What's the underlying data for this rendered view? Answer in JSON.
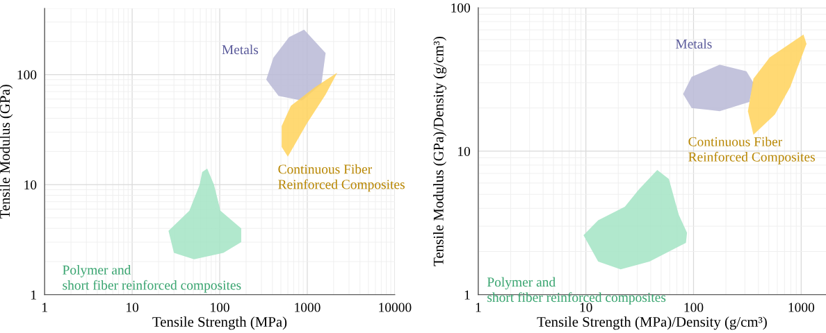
{
  "chart_data": [
    {
      "type": "area",
      "xlabel": "Tensile Strength (MPa)",
      "ylabel": "Tensile Modulus (GPa)",
      "log": "xy",
      "grid": true,
      "legend": false,
      "xlim": [
        1,
        10000
      ],
      "ylim": [
        1,
        400
      ],
      "xticks": [
        1,
        10,
        100,
        1000,
        10000
      ],
      "yticks": [
        1,
        10,
        100
      ],
      "series": [
        {
          "name": "Metals",
          "color": "#b9b9d6",
          "x": [
            920,
            1620,
            1450,
            870,
            470,
            340,
            410,
            620
          ],
          "values": [
            256,
            157,
            82,
            58,
            64,
            90,
            142,
            219
          ]
        },
        {
          "name": "Continuous Fiber\nReinforced Composites",
          "color": "#ffd25a",
          "x": [
            2200,
            1620,
            990,
            600,
            510,
            510,
            650,
            1230
          ],
          "values": [
            104,
            66,
            36,
            18,
            22,
            34,
            52,
            77
          ]
        },
        {
          "name": "Polymer and\nshort fiber reinforced composites",
          "color": "#a3e4c4",
          "x": [
            72,
            86,
            102,
            176,
            176,
            110,
            51,
            30,
            26,
            45,
            59,
            63
          ],
          "values": [
            14,
            10,
            5.8,
            4.0,
            3.0,
            2.4,
            2.1,
            2.4,
            3.8,
            5.8,
            10,
            13
          ]
        }
      ]
    },
    {
      "type": "area",
      "xlabel": "Tensile Strength (MPa)/Density (g/cm³)",
      "ylabel": "Tensile Modulus (GPa)/Density (g/cm³)",
      "log": "xy",
      "grid": true,
      "legend": false,
      "xlim": [
        1,
        1700
      ],
      "ylim": [
        1,
        100
      ],
      "xticks": [
        1,
        10,
        100,
        1000
      ],
      "yticks": [
        1,
        10,
        100
      ],
      "series": [
        {
          "name": "Metals",
          "color": "#b9b9d6",
          "x": [
            80,
            96,
            175,
            310,
            360,
            330,
            175,
            96
          ],
          "values": [
            25,
            33,
            40,
            36,
            30,
            22,
            19,
            20
          ]
        },
        {
          "name": "Continuous Fiber\nReinforced Composites",
          "color": "#ffd25a",
          "x": [
            1050,
            1120,
            790,
            570,
            360,
            320,
            360,
            510
          ],
          "values": [
            65,
            56,
            28,
            18,
            13,
            19,
            32,
            45
          ]
        },
        {
          "name": "Polymer and\nshort fiber reinforced composites",
          "color": "#a3e4c4",
          "x": [
            46,
            59,
            73,
            87,
            85,
            39,
            21,
            13,
            9.5,
            13,
            23,
            31
          ],
          "values": [
            7.4,
            6.4,
            3.6,
            2.7,
            2.3,
            1.7,
            1.5,
            1.7,
            2.6,
            3.3,
            4.1,
            5.4
          ]
        }
      ]
    }
  ]
}
